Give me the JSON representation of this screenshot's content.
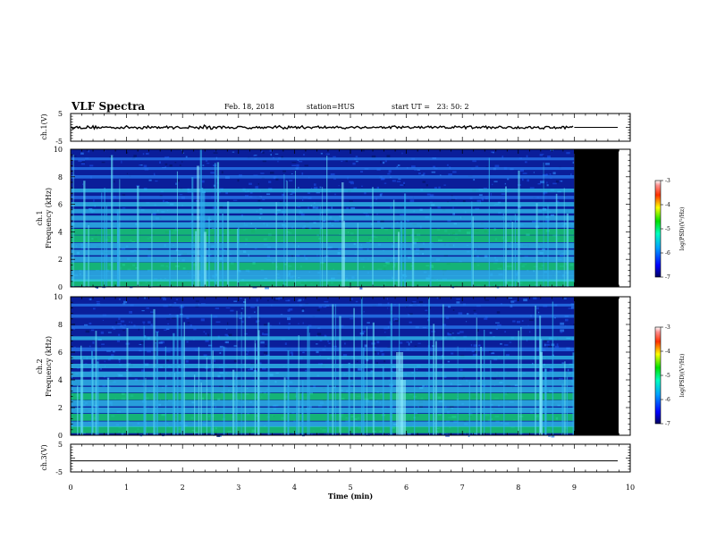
{
  "header": {
    "title": "VLF Spectra",
    "date": "Feb. 18, 2018",
    "station": "station=HUS",
    "start": "start UT =   23: 50: 2"
  },
  "chart_data": [
    {
      "name": "ch1-waveform",
      "type": "line",
      "ylabel": "ch.1(V)",
      "ylim": [
        -5,
        5
      ],
      "yticks": [
        "5",
        "-5"
      ],
      "xlim": [
        0,
        10
      ],
      "signal_end_min": 9.0,
      "level": 0
    },
    {
      "name": "ch1-spectrogram",
      "type": "heatmap",
      "ylabel_top": "ch.1",
      "ylabel": "Frequency (kHz)",
      "ylim": [
        0,
        10
      ],
      "yticks": [
        "0",
        "2",
        "4",
        "6",
        "8",
        "10"
      ],
      "xlim": [
        0,
        10
      ],
      "data_end_min": 9.0,
      "colorbar": {
        "label": "log(PSD)(V²/Hz)",
        "range": [
          -7,
          -3
        ],
        "ticks": [
          "-3",
          "-4",
          "-5",
          "-6",
          "-7"
        ]
      }
    },
    {
      "name": "ch2-spectrogram",
      "type": "heatmap",
      "ylabel_top": "ch.2",
      "ylabel": "Frequency (kHz)",
      "ylim": [
        0,
        10
      ],
      "yticks": [
        "0",
        "2",
        "4",
        "6",
        "8",
        "10"
      ],
      "xlim": [
        0,
        10
      ],
      "data_end_min": 9.0,
      "colorbar": {
        "label": "log(PSD)(V²/Hz)",
        "range": [
          -7,
          -3
        ],
        "ticks": [
          "-3",
          "-4",
          "-5",
          "-6",
          "-7"
        ]
      }
    },
    {
      "name": "ch3-waveform",
      "type": "line",
      "ylabel": "ch.3(V)",
      "ylim": [
        -5,
        5
      ],
      "yticks": [
        "5",
        "-5"
      ],
      "xlim": [
        0,
        10
      ],
      "level": -1
    }
  ],
  "xaxis": {
    "label": "Time (min)",
    "ticks": [
      "0",
      "1",
      "2",
      "3",
      "4",
      "5",
      "6",
      "7",
      "8",
      "9",
      "10"
    ],
    "range": [
      0,
      10
    ]
  },
  "colors": {
    "background": "#000000",
    "base": "#0a1e9a",
    "band": "#33c8f0",
    "strong": "#19e66b"
  }
}
